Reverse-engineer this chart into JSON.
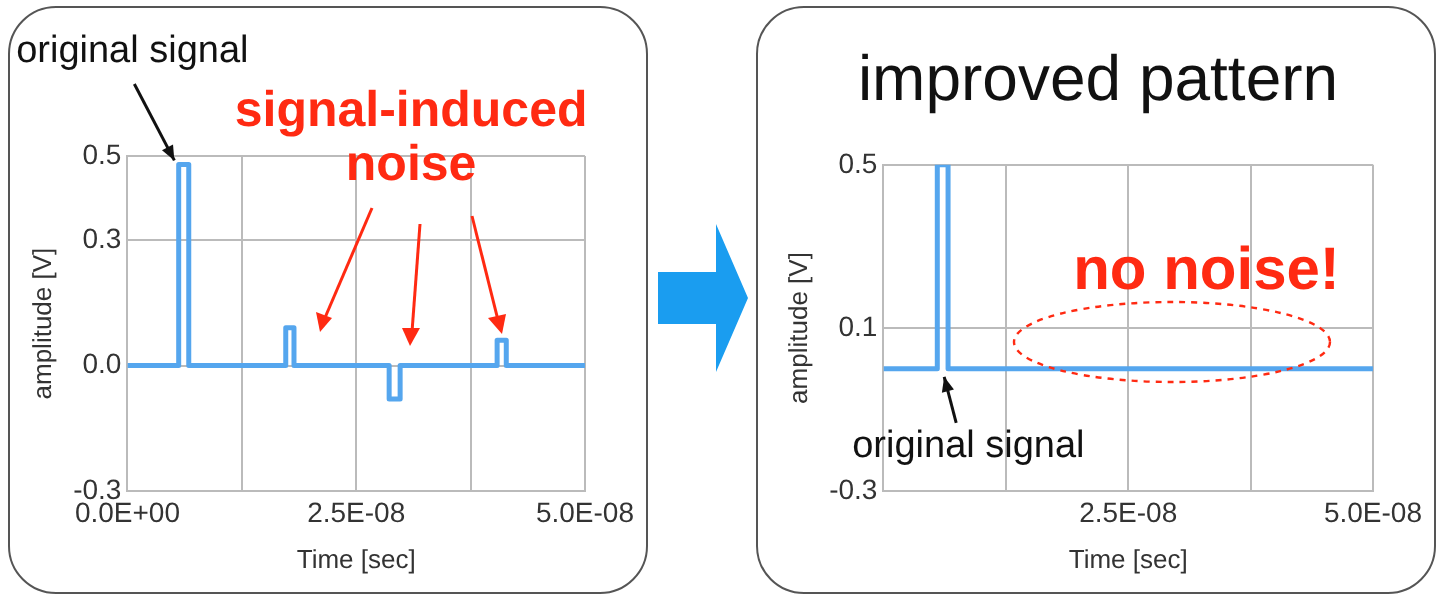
{
  "chart_data": [
    {
      "type": "line",
      "xlabel": "Time [sec]",
      "ylabel": "amplitude [V]",
      "xlim": [
        0,
        5e-08
      ],
      "ylim": [
        -0.3,
        0.5
      ],
      "xticks": [
        {
          "value": 0,
          "label": "0.0E+00"
        },
        {
          "value": 1.25e-08,
          "label": null
        },
        {
          "value": 2.5e-08,
          "label": "2.5E-08"
        },
        {
          "value": 3.75e-08,
          "label": null
        },
        {
          "value": 5e-08,
          "label": "5.0E-08"
        }
      ],
      "yticks": [
        -0.3,
        {
          "value": 0,
          "label": "0.0"
        },
        0.3,
        0.5
      ],
      "grid": true,
      "x": [
        0,
        5.6e-09,
        5.6e-09,
        6.7e-09,
        6.7e-09,
        1.73e-08,
        1.73e-08,
        1.82e-08,
        1.82e-08,
        2.86e-08,
        2.86e-08,
        2.98e-08,
        2.98e-08,
        4.04e-08,
        4.04e-08,
        4.14e-08,
        4.14e-08,
        5e-08
      ],
      "series": [
        {
          "color": "#55a6ee",
          "values": [
            0,
            0,
            0.48,
            0.48,
            0,
            0,
            0.09,
            0.09,
            0,
            0,
            -0.08,
            -0.08,
            0,
            0,
            0.06,
            0.06,
            0,
            0
          ]
        }
      ],
      "annotations": [
        {
          "text": "original signal",
          "x": 6e-09,
          "y": 0.48
        },
        "signal-induced noise"
      ]
    },
    {
      "type": "line",
      "title": "improved pattern",
      "xlabel": "Time [sec]",
      "ylabel": "amplitude [V]",
      "xlim": [
        0,
        5e-08
      ],
      "ylim": [
        -0.3,
        0.5
      ],
      "xticks": [
        {
          "value": 0,
          "label": null
        },
        {
          "value": 1.25e-08,
          "label": null
        },
        {
          "value": 2.5e-08,
          "label": "2.5E-08"
        },
        {
          "value": 3.75e-08,
          "label": null
        },
        {
          "value": 5e-08,
          "label": "5.0E-08"
        }
      ],
      "yticks": [
        -0.3,
        0.1,
        0.5
      ],
      "grid": true,
      "x": [
        0,
        5.5e-09,
        5.5e-09,
        6.6e-09,
        6.6e-09,
        5e-08
      ],
      "series": [
        {
          "color": "#55a6ee",
          "values": [
            0,
            0,
            0.5,
            0.5,
            0,
            0
          ]
        }
      ],
      "annotations": [
        {
          "text": "original signal",
          "x": 6e-09,
          "y": 0
        },
        "no noise!"
      ]
    }
  ]
}
